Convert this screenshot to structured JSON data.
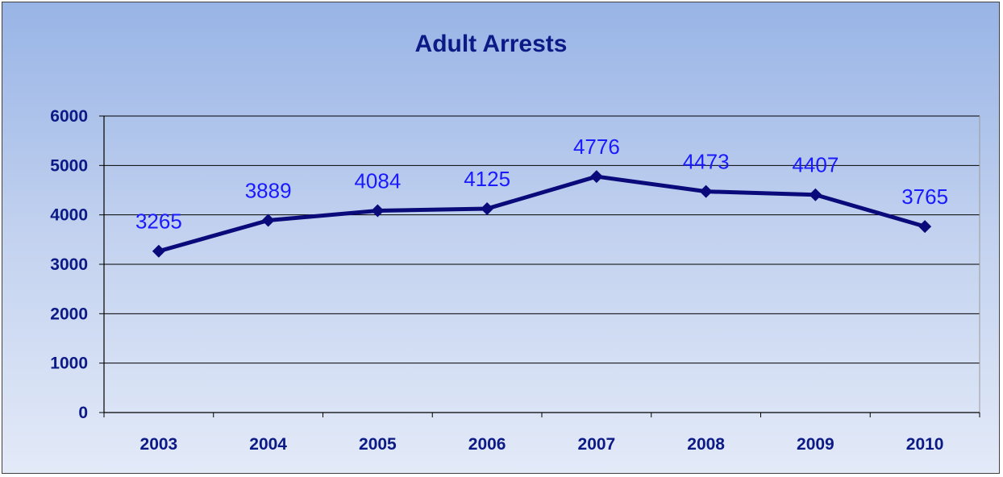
{
  "chart_data": {
    "type": "line",
    "title": "Adult Arrests",
    "xlabel": "",
    "ylabel": "",
    "categories": [
      "2003",
      "2004",
      "2005",
      "2006",
      "2007",
      "2008",
      "2009",
      "2010"
    ],
    "series": [
      {
        "values": [
          3265,
          3889,
          4084,
          4125,
          4776,
          4473,
          4407,
          3765
        ],
        "color": "#0a0a7a"
      }
    ],
    "data_labels": [
      "3265",
      "3889",
      "4084",
      "4125",
      "4776",
      "4473",
      "4407",
      "3765"
    ],
    "ylim": [
      0,
      6000
    ],
    "yticks": [
      "0",
      "1000",
      "2000",
      "3000",
      "4000",
      "5000",
      "6000"
    ],
    "grid": true,
    "legend": "none",
    "colors": {
      "title": "#0c1a86",
      "data_label": "#1a1aff",
      "line": "#0a0a7a",
      "grid": "#000000"
    }
  }
}
